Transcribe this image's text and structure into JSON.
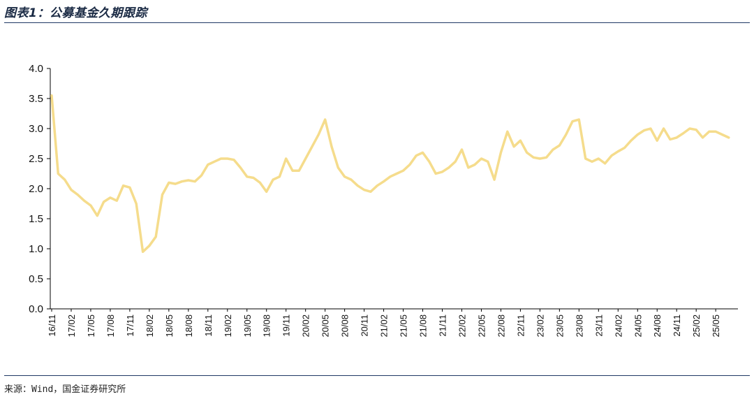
{
  "header": {
    "title": "图表1：公募基金久期跟踪"
  },
  "footer": {
    "source": "来源：Wind，国金证券研究所"
  },
  "chart_data": {
    "type": "line",
    "title": "",
    "xlabel": "",
    "ylabel": "",
    "ylim": [
      0,
      4.0
    ],
    "y_ticks": [
      "0.0",
      "0.5",
      "1.0",
      "1.5",
      "2.0",
      "2.5",
      "3.0",
      "3.5",
      "4.0"
    ],
    "x_ticks": [
      "16/11",
      "17/02",
      "17/05",
      "17/08",
      "17/11",
      "18/02",
      "18/05",
      "18/08",
      "18/11",
      "19/02",
      "19/05",
      "19/08",
      "19/11",
      "20/02",
      "20/05",
      "20/08",
      "20/11",
      "21/02",
      "21/05",
      "21/08",
      "21/11",
      "22/02",
      "22/05",
      "22/08",
      "22/11",
      "23/02",
      "23/05",
      "23/08",
      "23/11",
      "24/02",
      "24/05",
      "24/08",
      "24/11",
      "25/02",
      "25/05"
    ],
    "grid": false,
    "legend": "none",
    "series_color": "#f5dc8c",
    "series": [
      {
        "x": [
          "2016-11",
          "2016-12",
          "2017-01",
          "2017-02",
          "2017-03",
          "2017-04",
          "2017-05",
          "2017-06",
          "2017-07",
          "2017-08",
          "2017-09",
          "2017-10",
          "2017-11",
          "2017-12",
          "2018-01",
          "2018-02",
          "2018-03",
          "2018-04",
          "2018-05",
          "2018-06",
          "2018-07",
          "2018-08",
          "2018-09",
          "2018-10",
          "2018-11",
          "2018-12",
          "2019-01",
          "2019-02",
          "2019-03",
          "2019-04",
          "2019-05",
          "2019-06",
          "2019-07",
          "2019-08",
          "2019-09",
          "2019-10",
          "2019-11",
          "2019-12",
          "2020-01",
          "2020-02",
          "2020-03",
          "2020-04",
          "2020-05",
          "2020-06",
          "2020-07",
          "2020-08",
          "2020-09",
          "2020-10",
          "2020-11",
          "2020-12",
          "2021-01",
          "2021-02",
          "2021-03",
          "2021-04",
          "2021-05",
          "2021-06",
          "2021-07",
          "2021-08",
          "2021-09",
          "2021-10",
          "2021-11",
          "2021-12",
          "2022-01",
          "2022-02",
          "2022-03",
          "2022-04",
          "2022-05",
          "2022-06",
          "2022-07",
          "2022-08",
          "2022-09",
          "2022-10",
          "2022-11",
          "2022-12",
          "2023-01",
          "2023-02",
          "2023-03",
          "2023-04",
          "2023-05",
          "2023-06",
          "2023-07",
          "2023-08",
          "2023-09",
          "2023-10",
          "2023-11",
          "2023-12",
          "2024-01",
          "2024-02",
          "2024-03",
          "2024-04",
          "2024-05",
          "2024-06",
          "2024-07",
          "2024-08",
          "2024-09",
          "2024-10",
          "2024-11",
          "2024-12",
          "2025-01",
          "2025-02",
          "2025-03",
          "2025-04",
          "2025-05",
          "2025-06",
          "2025-07"
        ],
        "values": [
          3.55,
          2.25,
          2.15,
          1.98,
          1.9,
          1.8,
          1.72,
          1.55,
          1.78,
          1.85,
          1.8,
          2.05,
          2.02,
          1.75,
          0.95,
          1.05,
          1.2,
          1.9,
          2.1,
          2.08,
          2.12,
          2.14,
          2.12,
          2.22,
          2.4,
          2.45,
          2.5,
          2.5,
          2.48,
          2.35,
          2.2,
          2.18,
          2.1,
          1.95,
          2.15,
          2.2,
          2.5,
          2.3,
          2.3,
          2.5,
          2.7,
          2.9,
          3.15,
          2.7,
          2.35,
          2.2,
          2.15,
          2.05,
          1.98,
          1.95,
          2.05,
          2.12,
          2.2,
          2.25,
          2.3,
          2.4,
          2.55,
          2.6,
          2.45,
          2.25,
          2.28,
          2.35,
          2.45,
          2.65,
          2.35,
          2.4,
          2.5,
          2.45,
          2.15,
          2.6,
          2.95,
          2.7,
          2.8,
          2.6,
          2.52,
          2.5,
          2.52,
          2.65,
          2.72,
          2.9,
          3.12,
          3.15,
          2.5,
          2.45,
          2.5,
          2.42,
          2.55,
          2.62,
          2.68,
          2.8,
          2.9,
          2.97,
          3.0,
          2.8,
          3.0,
          2.82,
          2.85,
          2.92,
          3.0,
          2.98,
          2.85,
          2.95,
          2.95,
          2.9,
          2.85
        ]
      }
    ]
  }
}
